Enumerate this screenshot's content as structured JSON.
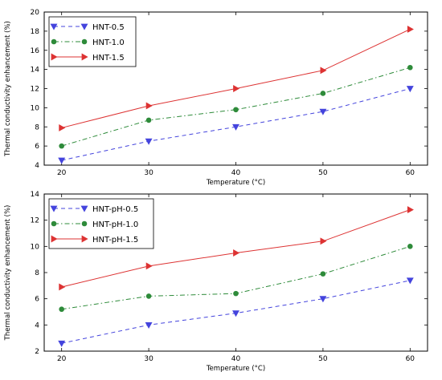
{
  "chart_data": [
    {
      "type": "line",
      "xlabel": "Temperature (°C)",
      "ylabel": "Thermal conductivity enhancement (%)",
      "x": [
        20,
        30,
        40,
        50,
        60
      ],
      "xticks": [
        "20",
        "30",
        "40",
        "50",
        "60"
      ],
      "xlim": [
        18,
        62
      ],
      "ylim": [
        4,
        20
      ],
      "yticks": [
        "4",
        "6",
        "8",
        "10",
        "12",
        "14",
        "16",
        "18",
        "20"
      ],
      "legend_position": "top-left",
      "grid": false,
      "series": [
        {
          "name": "HNT-0.5",
          "values": [
            4.5,
            6.5,
            8.0,
            9.6,
            12.0
          ],
          "color": "#4444dd",
          "marker": "triangle-down",
          "linestyle": "dashed"
        },
        {
          "name": "HNT-1.0",
          "values": [
            6.0,
            8.7,
            9.8,
            11.5,
            14.2
          ],
          "color": "#2e8b3a",
          "marker": "circle",
          "linestyle": "dashdot"
        },
        {
          "name": "HNT-1.5",
          "values": [
            7.9,
            10.2,
            12.0,
            13.9,
            18.2
          ],
          "color": "#dd3333",
          "marker": "triangle-right",
          "linestyle": "solid"
        }
      ]
    },
    {
      "type": "line",
      "xlabel": "Temperature (°C)",
      "ylabel": "Thermal conductivity enhancement (%)",
      "x": [
        20,
        30,
        40,
        50,
        60
      ],
      "xticks": [
        "20",
        "30",
        "40",
        "50",
        "60"
      ],
      "xlim": [
        18,
        62
      ],
      "ylim": [
        2,
        14
      ],
      "yticks": [
        "2",
        "4",
        "6",
        "8",
        "10",
        "12",
        "14"
      ],
      "legend_position": "top-left",
      "grid": false,
      "series": [
        {
          "name": "HNT-pH-0.5",
          "values": [
            2.6,
            4.0,
            4.9,
            6.0,
            7.4
          ],
          "color": "#4444dd",
          "marker": "triangle-down",
          "linestyle": "dashed"
        },
        {
          "name": "HNT-pH-1.0",
          "values": [
            5.2,
            6.2,
            6.4,
            7.9,
            10.0
          ],
          "color": "#2e8b3a",
          "marker": "circle",
          "linestyle": "dashdot"
        },
        {
          "name": "HNT-pH-1.5",
          "values": [
            6.9,
            8.5,
            9.5,
            10.4,
            12.8
          ],
          "color": "#dd3333",
          "marker": "triangle-right",
          "linestyle": "solid"
        }
      ]
    }
  ]
}
